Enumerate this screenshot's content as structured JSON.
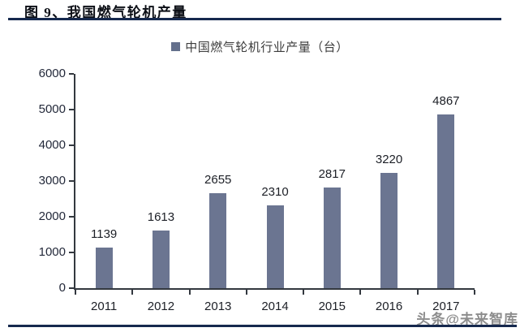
{
  "figure": {
    "title": "图 9、我国燃气轮机产量",
    "watermark": "头条@未来智库"
  },
  "chart_data": {
    "type": "bar",
    "title": "中国燃气轮机行业产量（台）",
    "legend": [
      "中国燃气轮机行业产量（台）"
    ],
    "legend_position": "top-center",
    "categories": [
      "2011",
      "2012",
      "2013",
      "2014",
      "2015",
      "2016",
      "2017"
    ],
    "values": [
      1139,
      1613,
      2655,
      2310,
      2817,
      3220,
      4867
    ],
    "xlabel": "",
    "ylabel": "",
    "ylim": [
      0,
      6000
    ],
    "yticks": [
      0,
      1000,
      2000,
      3000,
      4000,
      5000,
      6000
    ],
    "grid": false
  },
  "colors": {
    "bar": "#6b7591",
    "legend_swatch": "#64708c",
    "navy_rule": "#16294e",
    "axis": "#33383f"
  }
}
